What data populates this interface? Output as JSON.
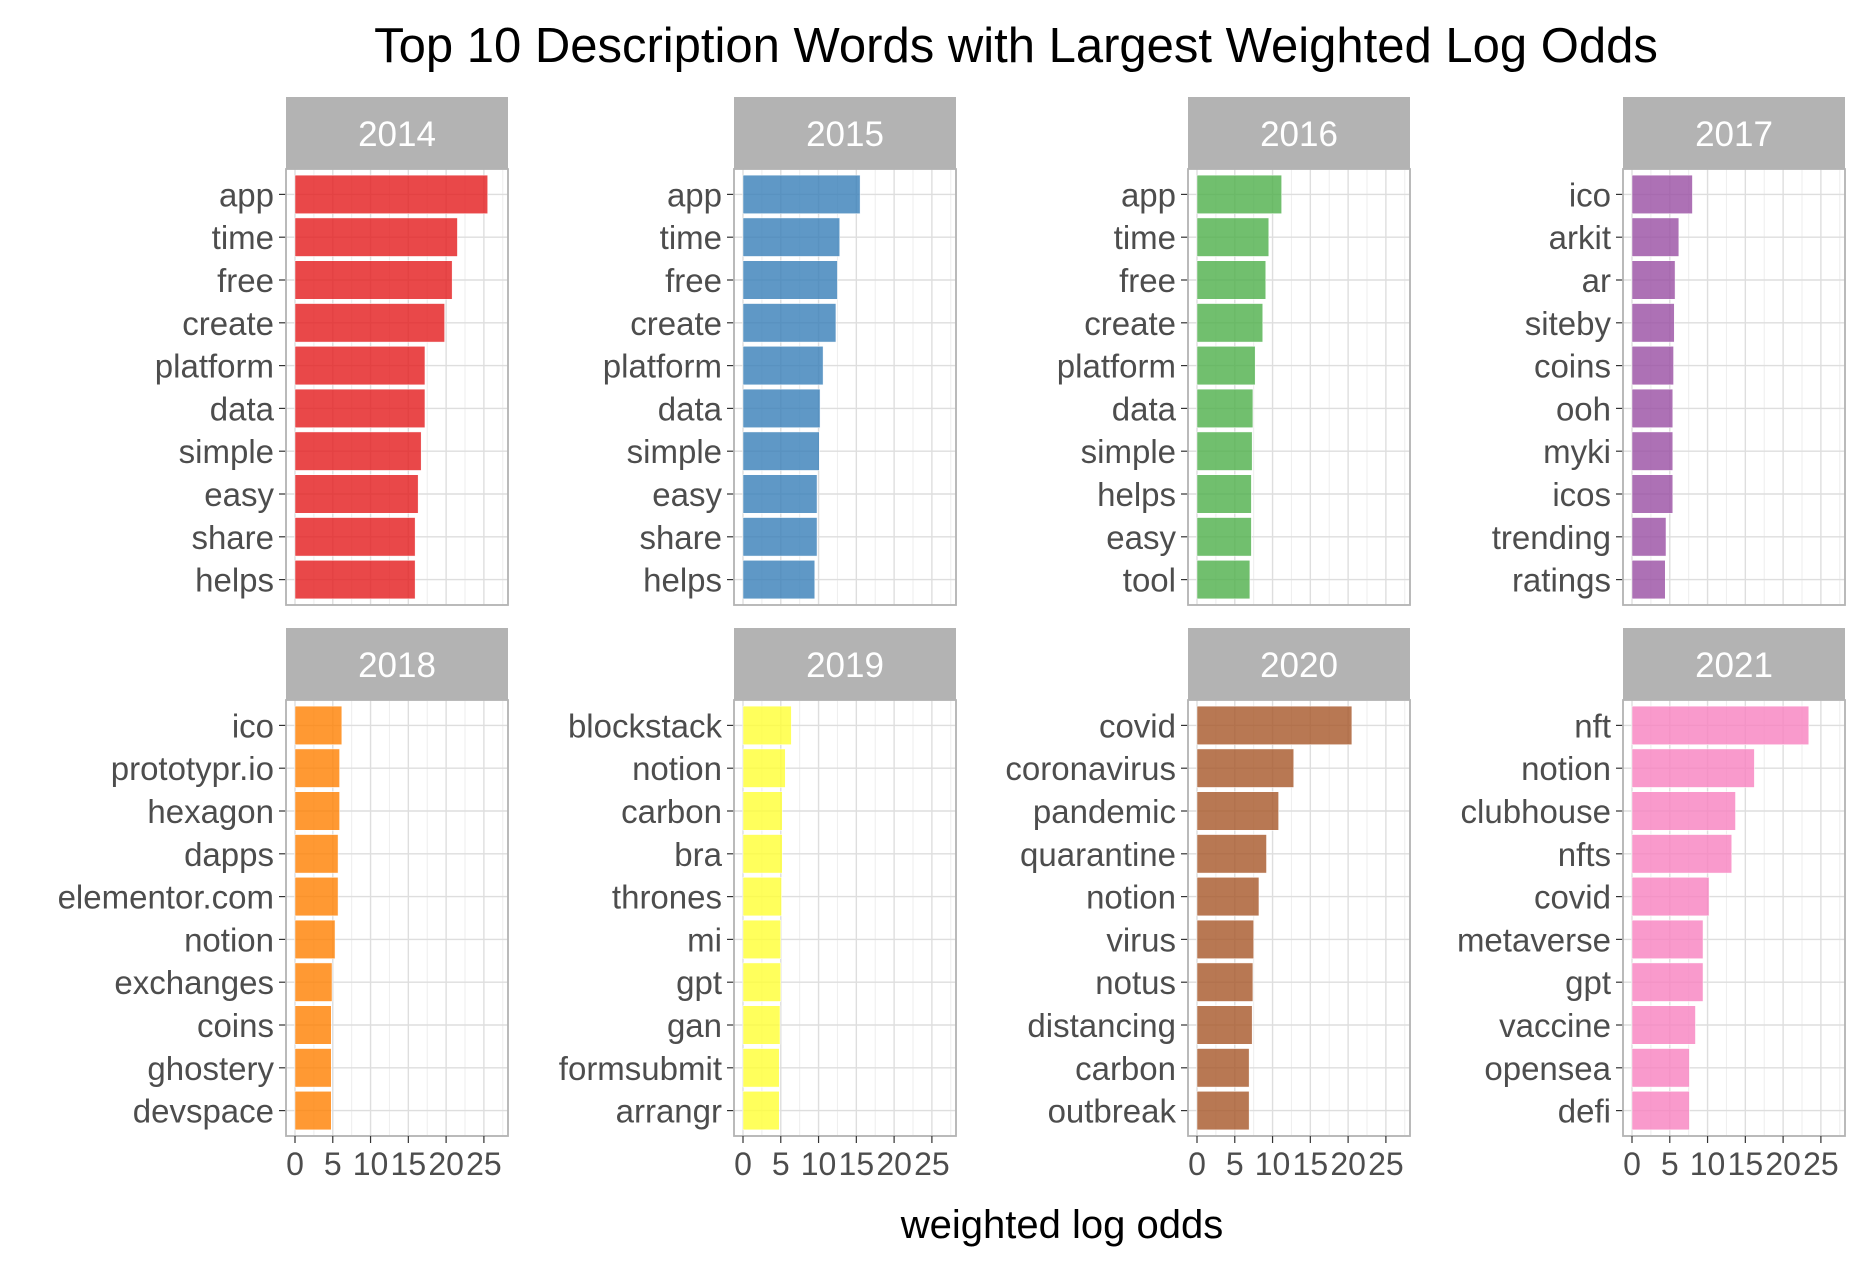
{
  "chart_data": {
    "type": "bar",
    "orientation": "horizontal",
    "layout": "facet_wrap",
    "title": "Top 10 Description Words with Largest Weighted Log Odds",
    "xlabel": "weighted log odds",
    "ylabel": "",
    "xlim": [
      0,
      27
    ],
    "x_ticks": [
      0,
      5,
      10,
      15,
      20,
      25
    ],
    "grid": true,
    "legend": "none",
    "facets": [
      {
        "label": "2014",
        "color": "#E41A1C",
        "words": [
          "app",
          "time",
          "free",
          "create",
          "platform",
          "data",
          "simple",
          "easy",
          "share",
          "helps"
        ],
        "values": [
          25.5,
          21.5,
          20.8,
          19.8,
          17.2,
          17.2,
          16.7,
          16.3,
          15.9,
          15.9
        ]
      },
      {
        "label": "2015",
        "color": "#377EB8",
        "words": [
          "app",
          "time",
          "free",
          "create",
          "platform",
          "data",
          "simple",
          "easy",
          "share",
          "helps"
        ],
        "values": [
          15.5,
          12.8,
          12.5,
          12.3,
          10.6,
          10.2,
          10.1,
          9.8,
          9.8,
          9.5
        ]
      },
      {
        "label": "2016",
        "color": "#4DAF4A",
        "words": [
          "app",
          "time",
          "free",
          "create",
          "platform",
          "data",
          "simple",
          "helps",
          "easy",
          "tool"
        ],
        "values": [
          11.2,
          9.5,
          9.1,
          8.7,
          7.7,
          7.4,
          7.3,
          7.2,
          7.2,
          7.0
        ]
      },
      {
        "label": "2017",
        "color": "#984EA3",
        "words": [
          "ico",
          "arkit",
          "ar",
          "siteby",
          "coins",
          "ooh",
          "myki",
          "icos",
          "trending",
          "ratings"
        ],
        "values": [
          8.0,
          6.2,
          5.7,
          5.6,
          5.5,
          5.4,
          5.4,
          5.4,
          4.5,
          4.4
        ]
      },
      {
        "label": "2018",
        "color": "#FF7F00",
        "words": [
          "ico",
          "prototypr.io",
          "hexagon",
          "dapps",
          "elementor.com",
          "notion",
          "exchanges",
          "coins",
          "ghostery",
          "devspace"
        ],
        "values": [
          6.2,
          5.9,
          5.9,
          5.7,
          5.7,
          5.3,
          4.9,
          4.8,
          4.8,
          4.8
        ]
      },
      {
        "label": "2019",
        "color": "#FFFF33",
        "words": [
          "blockstack",
          "notion",
          "carbon",
          "bra",
          "thrones",
          "mi",
          "gpt",
          "gan",
          "formsubmit",
          "arrangr"
        ],
        "values": [
          6.4,
          5.6,
          5.2,
          5.2,
          5.1,
          5.0,
          5.0,
          4.9,
          4.8,
          4.8
        ]
      },
      {
        "label": "2020",
        "color": "#A65628",
        "words": [
          "covid",
          "coronavirus",
          "pandemic",
          "quarantine",
          "notion",
          "virus",
          "notus",
          "distancing",
          "carbon",
          "outbreak"
        ],
        "values": [
          20.5,
          12.8,
          10.8,
          9.2,
          8.2,
          7.5,
          7.4,
          7.3,
          6.9,
          6.9
        ]
      },
      {
        "label": "2021",
        "color": "#F781BF",
        "words": [
          "nft",
          "notion",
          "clubhouse",
          "nfts",
          "covid",
          "metaverse",
          "gpt",
          "vaccine",
          "opensea",
          "defi"
        ],
        "values": [
          23.4,
          16.2,
          13.7,
          13.2,
          10.2,
          9.4,
          9.4,
          8.4,
          7.6,
          7.6
        ]
      }
    ]
  }
}
